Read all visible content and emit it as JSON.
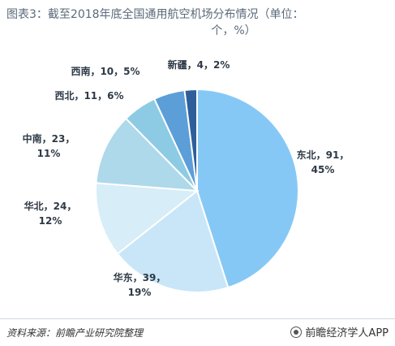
{
  "title": {
    "line1": "图表3：截至2018年底全国通用航空机场分布情况（单位：",
    "line2": "个，%）"
  },
  "chart_data": {
    "type": "pie",
    "slices": [
      {
        "label": "东北",
        "value": 91,
        "percent": "45%",
        "color": "#86c8f5"
      },
      {
        "label": "华东",
        "value": 39,
        "percent": "19%",
        "color": "#c8e6f8"
      },
      {
        "label": "华北",
        "value": 24,
        "percent": "12%",
        "color": "#d7edf8"
      },
      {
        "label": "中南",
        "value": 23,
        "percent": "11%",
        "color": "#add9ea"
      },
      {
        "label": "西北",
        "value": 11,
        "percent": "6%",
        "color": "#8dcbe4"
      },
      {
        "label": "西南",
        "value": 10,
        "percent": "5%",
        "color": "#5c9ed8"
      },
      {
        "label": "新疆",
        "value": 4,
        "percent": "2%",
        "color": "#2f5f9a"
      }
    ]
  },
  "footer": {
    "source": "资料来源：前瞻产业研究院整理",
    "brand": "前瞻经济学人APP"
  }
}
